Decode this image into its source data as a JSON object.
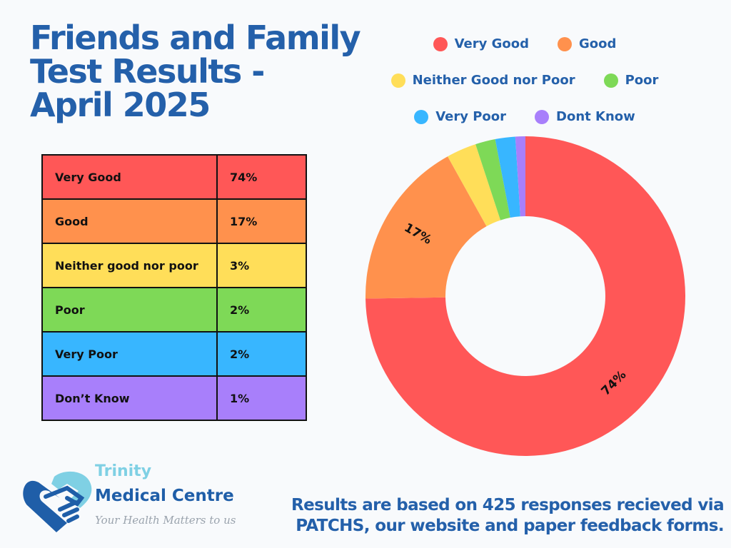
{
  "title": {
    "line1": "Friends and Family",
    "line2": "Test Results -",
    "line3": "April 2025"
  },
  "legend": [
    {
      "label": "Very Good",
      "color": "#ff5757"
    },
    {
      "label": "Good",
      "color": "#ff914d"
    },
    {
      "label": "Neither Good nor Poor",
      "color": "#ffde59"
    },
    {
      "label": "Poor",
      "color": "#7ed957"
    },
    {
      "label": "Very Poor",
      "color": "#38b6ff"
    },
    {
      "label": "Dont Know",
      "color": "#a87ffb"
    }
  ],
  "table": {
    "rows": [
      {
        "label": "Very Good",
        "value": "74%",
        "color": "#ff5757"
      },
      {
        "label": "Good",
        "value": "17%",
        "color": "#ff914d"
      },
      {
        "label": "Neither good nor poor",
        "value": "3%",
        "color": "#ffde59"
      },
      {
        "label": "Poor",
        "value": "2%",
        "color": "#7ed957"
      },
      {
        "label": "Very Poor",
        "value": "2%",
        "color": "#38b6ff"
      },
      {
        "label": "Don’t Know",
        "value": "1%",
        "color": "#a87ffb"
      }
    ]
  },
  "chart_data": {
    "type": "pie",
    "variant": "donut",
    "categories": [
      "Very Good",
      "Good",
      "Neither Good nor Poor",
      "Poor",
      "Very Poor",
      "Dont Know"
    ],
    "values": [
      74,
      17,
      3,
      2,
      2,
      1
    ],
    "unit": "%",
    "colors": [
      "#ff5757",
      "#ff914d",
      "#ffde59",
      "#7ed957",
      "#38b6ff",
      "#a87ffb"
    ],
    "data_labels": [
      "74%",
      "17%",
      "",
      "",
      "",
      ""
    ],
    "legend_position": "top",
    "start": "top",
    "direction": "clockwise-descending"
  },
  "logo": {
    "name_line1": "Trinity",
    "name_line2": "Medical Centre",
    "tagline": "Your Health Matters to us",
    "colors": {
      "dark": "#1f5ea8",
      "light": "#7fd0e4"
    }
  },
  "footer": {
    "line1": "Results are based on 425 responses recieved via",
    "line2": "PATCHS, our website and paper feedback forms."
  }
}
